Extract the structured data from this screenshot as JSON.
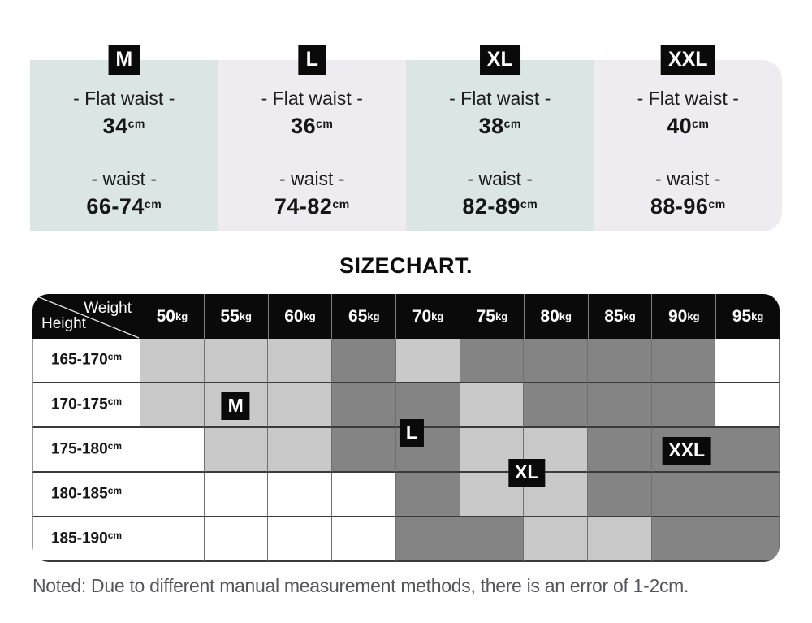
{
  "title": "SIZECHART.",
  "note": "Noted: Due to different manual measurement methods, there is an error of 1-2cm.",
  "colors": {
    "teal": "#dbe5e4",
    "lavender": "#eeecf1",
    "badge_bg": "#0a0a0a",
    "badge_text": "#ffffff",
    "header_bg": "#0a0a0a",
    "note_text": "#55565a",
    "cell_colors": {
      "0": "#ffffff",
      "1": "#c9c9c9",
      "2": "#848484"
    }
  },
  "size_cards": {
    "flat_waist_label": "- Flat waist -",
    "waist_label": "- waist -",
    "unit": "cm",
    "items": [
      {
        "size": "M",
        "flat_waist": "34",
        "waist": "66-74",
        "theme": "teal"
      },
      {
        "size": "L",
        "flat_waist": "36",
        "waist": "74-82",
        "theme": "lavender"
      },
      {
        "size": "XL",
        "flat_waist": "38",
        "waist": "82-89",
        "theme": "teal"
      },
      {
        "size": "XXL",
        "flat_waist": "40",
        "waist": "88-96",
        "theme": "lavender"
      }
    ]
  },
  "chart_data": {
    "type": "heatmap",
    "title": "SIZECHART.",
    "corner": {
      "top_label": "Weight",
      "side_label": "Height"
    },
    "columns": [
      "50",
      "55",
      "60",
      "65",
      "70",
      "75",
      "80",
      "85",
      "90",
      "95"
    ],
    "col_unit": "kg",
    "rows": [
      "165-170",
      "170-175",
      "175-180",
      "180-185",
      "185-190"
    ],
    "row_unit": "cm",
    "matrix_legend": {
      "0": "white",
      "1": "light-gray",
      "2": "dark-gray"
    },
    "matrix": [
      [
        1,
        1,
        1,
        2,
        1,
        2,
        2,
        2,
        2,
        0
      ],
      [
        1,
        1,
        1,
        2,
        2,
        1,
        2,
        2,
        2,
        0
      ],
      [
        0,
        1,
        1,
        2,
        2,
        1,
        1,
        2,
        2,
        2
      ],
      [
        0,
        0,
        0,
        0,
        2,
        1,
        1,
        2,
        2,
        2
      ],
      [
        0,
        0,
        0,
        0,
        2,
        2,
        1,
        1,
        2,
        2
      ]
    ],
    "size_markers": [
      {
        "label": "M",
        "col_unit": 1.5,
        "row_unit": 1.5
      },
      {
        "label": "L",
        "col_unit": 4.25,
        "row_unit": 2.1
      },
      {
        "label": "XL",
        "col_unit": 6.05,
        "row_unit": 3.0
      },
      {
        "label": "XXL",
        "col_unit": 8.55,
        "row_unit": 2.5
      }
    ]
  }
}
